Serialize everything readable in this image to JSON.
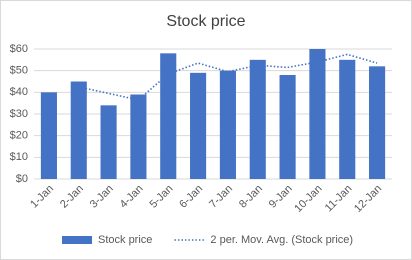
{
  "chart_data": {
    "type": "bar",
    "title": "Stock price",
    "categories": [
      "1-Jan",
      "2-Jan",
      "3-Jan",
      "4-Jan",
      "5-Jan",
      "6-Jan",
      "7-Jan",
      "8-Jan",
      "9-Jan",
      "10-Jan",
      "11-Jan",
      "12-Jan"
    ],
    "series": [
      {
        "name": "Stock price",
        "type": "bar",
        "color": "#4472c4",
        "values": [
          40,
          45,
          34,
          39,
          58,
          49,
          50,
          55,
          48,
          60,
          55,
          52
        ]
      },
      {
        "name": "2 per. Mov. Avg. (Stock price)",
        "type": "line",
        "dash": "dotted",
        "color": "#4472c4",
        "values": [
          null,
          42.5,
          39.5,
          36.5,
          48.5,
          53.5,
          49.5,
          52.5,
          51.5,
          54,
          57.5,
          53.5
        ]
      }
    ],
    "ylim": [
      0,
      60
    ],
    "yticks": [
      {
        "value": 0,
        "label": "$0"
      },
      {
        "value": 10,
        "label": "$10"
      },
      {
        "value": 20,
        "label": "$20"
      },
      {
        "value": 30,
        "label": "$30"
      },
      {
        "value": 40,
        "label": "$40"
      },
      {
        "value": 50,
        "label": "$50"
      },
      {
        "value": 60,
        "label": "$60"
      }
    ],
    "grid": true,
    "legend": "bottom"
  }
}
